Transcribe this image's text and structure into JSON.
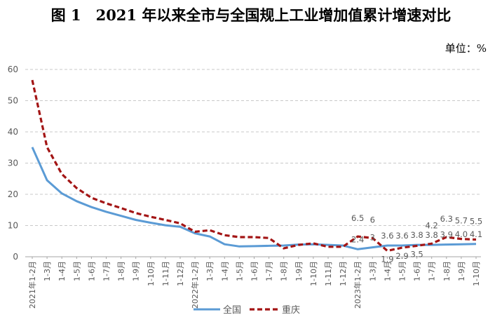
{
  "title": "图 1　2021 年以来全市与全国规上工业增加值累计增速对比",
  "unit_label": "单位：%",
  "colors": {
    "national": "#5b9bd5",
    "chongqing": "#a31515",
    "grid": "#c8c8c8",
    "axis_text": "#595959"
  },
  "chart_data": {
    "type": "line",
    "title": "2021 年以来全市与全国规上工业增加值累计增速对比",
    "ylabel": "单位：%",
    "ylim": [
      0,
      60
    ],
    "yticks": [
      0,
      10,
      20,
      30,
      40,
      50,
      60
    ],
    "categories": [
      "2021年1-2月",
      "1-3月",
      "1-4月",
      "1-5月",
      "1-6月",
      "1-7月",
      "1-8月",
      "1-9月",
      "1-10月",
      "1-11月",
      "1-12月",
      "2022年1-2月",
      "1-3月",
      "1-4月",
      "1-5月",
      "1-6月",
      "1-7月",
      "1-8月",
      "1-9月",
      "1-10月",
      "1-11月",
      "1-12月",
      "2023年1-2月",
      "1-3月",
      "1-4月",
      "1-5月",
      "1-6月",
      "1-7月",
      "1-8月",
      "1-9月",
      "1-10月"
    ],
    "series": [
      {
        "name": "全国",
        "style": "solid",
        "values": [
          35.1,
          24.5,
          20.3,
          17.8,
          15.9,
          14.4,
          13.1,
          11.8,
          10.9,
          10.1,
          9.6,
          7.5,
          6.5,
          4.0,
          3.3,
          3.4,
          3.5,
          3.6,
          3.9,
          4.0,
          3.8,
          3.6,
          2.4,
          3.0,
          3.6,
          3.6,
          3.8,
          3.8,
          3.9,
          4.0,
          4.1
        ],
        "labels": {
          "22": "2.4",
          "23": "3",
          "24": "3.6",
          "25": "3.6",
          "26": "3.8",
          "27": "3.8",
          "28": "3.9",
          "29": "4.0",
          "30": "4.1"
        }
      },
      {
        "name": "重庆",
        "style": "dashed",
        "values": [
          56.6,
          35.1,
          26.5,
          22.0,
          18.9,
          17.1,
          15.6,
          14.0,
          12.8,
          11.8,
          10.7,
          8.0,
          8.5,
          6.9,
          6.3,
          6.3,
          6.0,
          2.7,
          3.8,
          4.3,
          3.2,
          3.2,
          6.5,
          6.0,
          1.9,
          2.9,
          3.5,
          4.2,
          6.3,
          5.7,
          5.5
        ],
        "labels": {
          "22": "6.5",
          "23": "6",
          "24": "1.9",
          "25": "2.9",
          "26": "3.5",
          "27": "4.2",
          "28": "6.3",
          "29": "5.7",
          "30": "5.5"
        }
      }
    ],
    "legend": {
      "position": "bottom-center",
      "entries": [
        "全国",
        "重庆"
      ]
    },
    "grid": true
  }
}
